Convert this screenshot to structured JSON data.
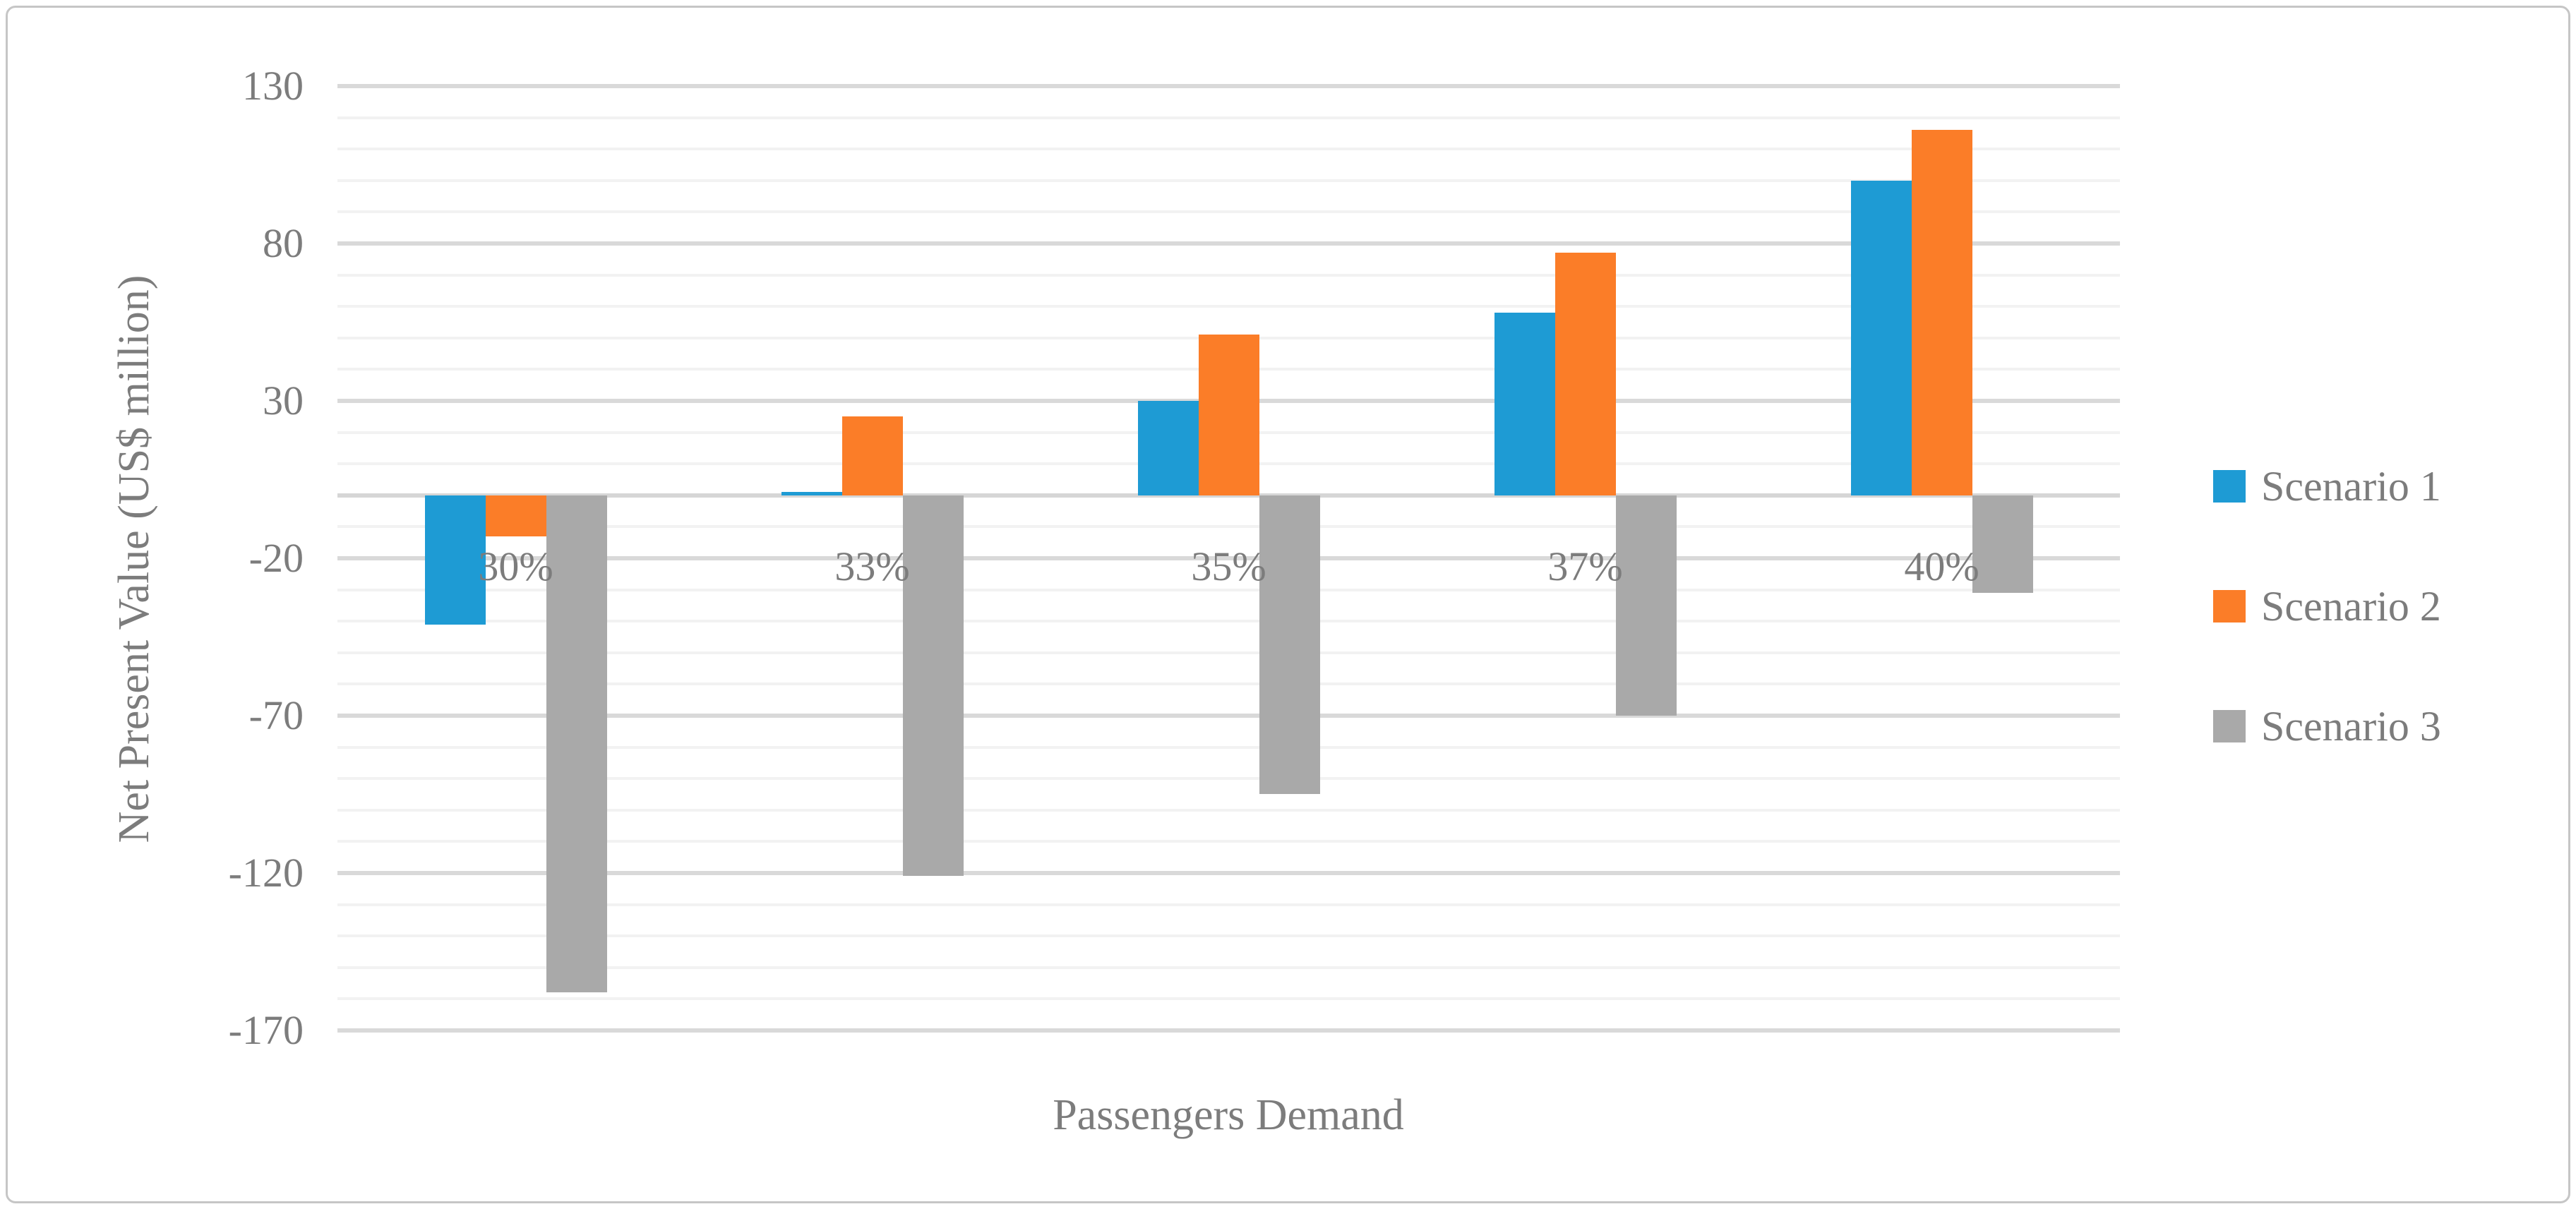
{
  "figure": {
    "y_axis_title": "Net Present Value (US$ million)",
    "x_axis_title": "Passengers Demand"
  },
  "chart_data": {
    "type": "bar",
    "title": "",
    "categories": [
      "30%",
      "33%",
      "35%",
      "37%",
      "40%"
    ],
    "series": [
      {
        "name": "Scenario 1",
        "color": "#1e9bd4",
        "values": [
          -41,
          1,
          30,
          58,
          100
        ]
      },
      {
        "name": "Scenario 2",
        "color": "#fb7d28",
        "values": [
          -13,
          25,
          51,
          77,
          116
        ]
      },
      {
        "name": "Scenario 3",
        "color": "#a9a9a9",
        "values": [
          -158,
          -121,
          -95,
          -70,
          -31
        ]
      }
    ],
    "xlabel": "Passengers Demand",
    "ylabel": "Net Present Value (US$ million)",
    "ylim": [
      -170,
      130
    ],
    "y_major_ticks": [
      130,
      80,
      30,
      -20,
      -70,
      -120,
      -170
    ],
    "y_minor_step": 10,
    "grid": "on",
    "legend_position": "right",
    "colors": {
      "major_gridline": "#d9d9d9",
      "minor_gridline": "#f2f2f2",
      "axis_text": "#7c7c7c",
      "frame_border": "#c6c6c6"
    }
  }
}
